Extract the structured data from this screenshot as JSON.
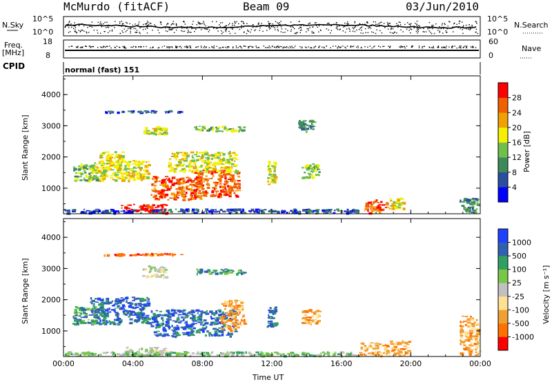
{
  "header": {
    "station": "McMurdo (fitACF)",
    "beam": "Beam 09",
    "date": "03/Jun/2010"
  },
  "strip_panels": {
    "nsky": {
      "left_label": "N.Sky",
      "right_label": "N.Search",
      "left_ticks": [
        "10^5",
        "10^0"
      ],
      "right_ticks": [
        "10^5",
        "10^0"
      ]
    },
    "freq": {
      "left_label": "Freq.",
      "left_unit": "[MHz]",
      "right_label": "Nave",
      "left_ticks": [
        "18",
        "8"
      ],
      "right_ticks": [
        "60",
        "0"
      ]
    },
    "cpid": {
      "label": "CPID",
      "value": "normal (fast) 151"
    }
  },
  "colors": {
    "power_scale": [
      "#0000ff",
      "#2a4ea0",
      "#3c8a5a",
      "#6fbf4a",
      "#f5f000",
      "#f0a000",
      "#f06000",
      "#ff0000"
    ],
    "velocity_scale": [
      "#ff0000",
      "#ff7000",
      "#f0a030",
      "#ffe090",
      "#c0c0c0",
      "#78c848",
      "#30a060",
      "#3060b0",
      "#2040ff"
    ]
  },
  "chart_data": [
    {
      "type": "heatmap",
      "title": "",
      "xlabel": "",
      "ylabel": "Slant Range [km]",
      "x_ticks": [
        "00:00",
        "04:00",
        "08:00",
        "12:00",
        "16:00",
        "20:00",
        "00:00"
      ],
      "xlim": [
        0,
        24
      ],
      "ylim": [
        180,
        4600
      ],
      "y_ticks": [
        1000,
        2000,
        3000,
        4000
      ],
      "colorbar": {
        "label": "Power [dB]",
        "ticks": [
          "28",
          "24",
          "20",
          "16",
          "12",
          "8",
          "4"
        ],
        "range": [
          0,
          32
        ]
      },
      "regions": [
        {
          "x": [
            3.3,
            6.0
          ],
          "y": [
            180,
            500
          ],
          "value": 30
        },
        {
          "x": [
            1.5,
            5.0
          ],
          "y": [
            1200,
            1900
          ],
          "value": 18
        },
        {
          "x": [
            5.0,
            8.0
          ],
          "y": [
            600,
            1400
          ],
          "value": 28
        },
        {
          "x": [
            7.5,
            10.2
          ],
          "y": [
            700,
            1600
          ],
          "value": 29
        },
        {
          "x": [
            2.0,
            3.5
          ],
          "y": [
            1600,
            2200
          ],
          "value": 16
        },
        {
          "x": [
            6.0,
            10.0
          ],
          "y": [
            1500,
            2200
          ],
          "value": 20
        },
        {
          "x": [
            0.5,
            2.0
          ],
          "y": [
            1200,
            1800
          ],
          "value": 14
        },
        {
          "x": [
            4.5,
            6.0
          ],
          "y": [
            2700,
            3000
          ],
          "value": 18
        },
        {
          "x": [
            7.5,
            10.5
          ],
          "y": [
            2800,
            3000
          ],
          "value": 12
        },
        {
          "x": [
            11.7,
            12.3
          ],
          "y": [
            1100,
            1900
          ],
          "value": 18
        },
        {
          "x": [
            13.7,
            14.8
          ],
          "y": [
            1300,
            1800
          ],
          "value": 14
        },
        {
          "x": [
            17.3,
            18.7
          ],
          "y": [
            180,
            650
          ],
          "value": 29
        },
        {
          "x": [
            18.7,
            19.8
          ],
          "y": [
            300,
            700
          ],
          "value": 16
        },
        {
          "x": [
            22.8,
            24.0
          ],
          "y": [
            180,
            700
          ],
          "value": 8
        },
        {
          "x": [
            0.0,
            17.0
          ],
          "y": [
            180,
            350
          ],
          "value": 6
        },
        {
          "x": [
            2.0,
            7.0
          ],
          "y": [
            3400,
            3500
          ],
          "value": 6
        },
        {
          "x": [
            13.5,
            14.5
          ],
          "y": [
            2800,
            3200
          ],
          "value": 10
        }
      ]
    },
    {
      "type": "heatmap",
      "title": "",
      "xlabel": "Time UT",
      "ylabel": "Slant Range [km]",
      "x_ticks": [
        "00:00",
        "04:00",
        "08:00",
        "12:00",
        "16:00",
        "20:00",
        "00:00"
      ],
      "xlim": [
        0,
        24
      ],
      "ylim": [
        180,
        4600
      ],
      "y_ticks": [
        1000,
        2000,
        3000,
        4000
      ],
      "colorbar": {
        "label": "Velocity [m s⁻¹]",
        "ticks": [
          "1000",
          "500",
          "100",
          "25",
          "-25",
          "-100",
          "-500",
          "-1000"
        ],
        "range": [
          -1000,
          1000
        ]
      },
      "regions": [
        {
          "x": [
            1.5,
            5.0
          ],
          "y": [
            1200,
            2100
          ],
          "value": 800
        },
        {
          "x": [
            5.0,
            10.0
          ],
          "y": [
            800,
            1700
          ],
          "value": 700
        },
        {
          "x": [
            0.5,
            2.0
          ],
          "y": [
            1200,
            1800
          ],
          "value": 300
        },
        {
          "x": [
            9.0,
            10.5
          ],
          "y": [
            1000,
            2000
          ],
          "value": -300
        },
        {
          "x": [
            3.5,
            6.0
          ],
          "y": [
            180,
            500
          ],
          "value": 0
        },
        {
          "x": [
            4.5,
            6.0
          ],
          "y": [
            2700,
            3100
          ],
          "value": 0
        },
        {
          "x": [
            7.5,
            10.5
          ],
          "y": [
            2800,
            3000
          ],
          "value": 200
        },
        {
          "x": [
            11.7,
            12.3
          ],
          "y": [
            1100,
            1800
          ],
          "value": 600
        },
        {
          "x": [
            13.7,
            14.8
          ],
          "y": [
            1200,
            1700
          ],
          "value": -200
        },
        {
          "x": [
            17.0,
            18.8
          ],
          "y": [
            180,
            650
          ],
          "value": -400
        },
        {
          "x": [
            18.8,
            20.0
          ],
          "y": [
            200,
            700
          ],
          "value": -200
        },
        {
          "x": [
            22.8,
            24.0
          ],
          "y": [
            200,
            1500
          ],
          "value": -150
        },
        {
          "x": [
            0.0,
            17.0
          ],
          "y": [
            180,
            350
          ],
          "value": 100
        },
        {
          "x": [
            2.0,
            7.0
          ],
          "y": [
            3400,
            3500
          ],
          "value": -600
        }
      ]
    }
  ]
}
